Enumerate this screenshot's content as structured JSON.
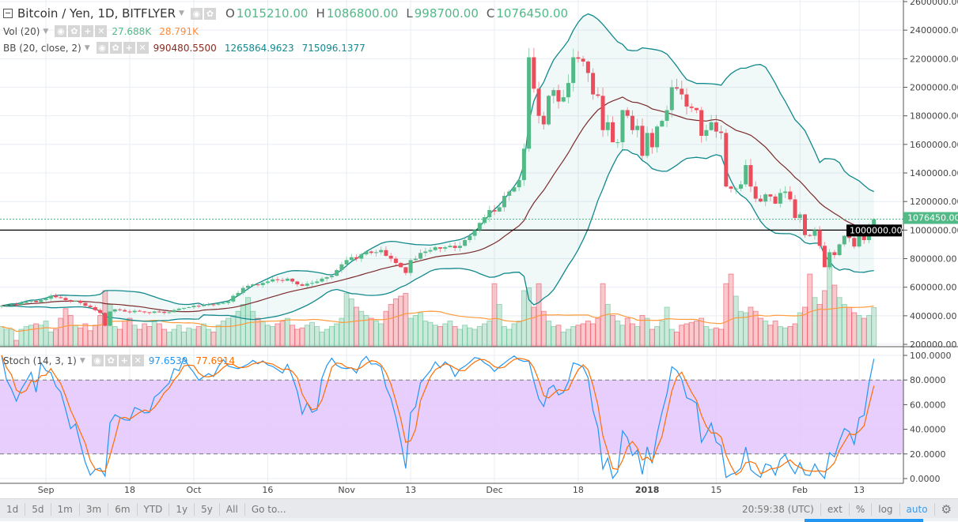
{
  "header": {
    "symbol_title": "Bitcoin / Yen, 1D, BITFLYER",
    "ohlc": {
      "o_label": "O",
      "o": "1015210.00",
      "h_label": "H",
      "h": "1086800.00",
      "l_label": "L",
      "l": "998700.00",
      "c_label": "C",
      "c": "1076450.00"
    }
  },
  "indicators": {
    "volume": {
      "label": "Vol (20)",
      "value": "27.688K",
      "ma": "28.791K"
    },
    "bb": {
      "label": "BB (20, close, 2)",
      "basis": "990480.5500",
      "upper": "1265864.9623",
      "lower": "715096.1377"
    },
    "stoch": {
      "label": "Stoch (14, 3, 1)",
      "k": "97.6539",
      "d": "77.6914"
    }
  },
  "price_axis": {
    "ticks": [
      "2600000.00",
      "2400000.00",
      "2200000.00",
      "2000000.00",
      "1800000.00",
      "1600000.00",
      "1400000.00",
      "1200000.00",
      "1000000.00",
      "800000.00",
      "600000.00",
      "400000.00",
      "200000.00"
    ],
    "last_price_label": "1076450.00",
    "horizontal_line_label": "1000000.00"
  },
  "stoch_axis": {
    "ticks": [
      "100.0000",
      "80.0000",
      "60.0000",
      "40.0000",
      "20.0000",
      "0.0000"
    ]
  },
  "time_axis": {
    "ticks": [
      "Sep",
      "18",
      "Oct",
      "16",
      "Nov",
      "13",
      "Dec",
      "18",
      "2018",
      "15",
      "Feb",
      "13"
    ]
  },
  "toolbar": {
    "ranges": [
      "1d",
      "5d",
      "1m",
      "3m",
      "6m",
      "YTD",
      "1y",
      "5y",
      "All",
      "Go to..."
    ],
    "clock": "20:59:38 (UTC)",
    "options": [
      "ext",
      "%",
      "log",
      "auto"
    ],
    "settings_icon": "gear-icon"
  },
  "colors": {
    "up": "#53b987",
    "down": "#eb4d5c",
    "bb_band": "#12898c",
    "bb_basis": "#7b2b2b",
    "vol_ma": "#ff9a3c",
    "stoch_k": "#2196f3",
    "stoch_d": "#ff6d00",
    "stoch_band": "#e3c6fb",
    "hline": "#000000",
    "last_price": "#53b987"
  },
  "chart_data": {
    "type": "candlestick",
    "price_range": [
      200000,
      2600000
    ],
    "horizontal_line": 1000000,
    "last": {
      "open": 1015210,
      "high": 1086800,
      "low": 998700,
      "close": 1076450
    },
    "closes_k": [
      470,
      475,
      480,
      478,
      490,
      500,
      505,
      495,
      510,
      520,
      540,
      530,
      525,
      510,
      500,
      505,
      490,
      470,
      460,
      440,
      420,
      330,
      430,
      445,
      440,
      430,
      425,
      435,
      430,
      425,
      420,
      430,
      428,
      420,
      425,
      440,
      450,
      455,
      460,
      470,
      468,
      475,
      480,
      478,
      485,
      490,
      500,
      540,
      560,
      595,
      610,
      620,
      615,
      630,
      640,
      655,
      650,
      645,
      660,
      640,
      620,
      610,
      625,
      630,
      640,
      660,
      670,
      680,
      720,
      760,
      790,
      810,
      800,
      830,
      850,
      840,
      845,
      860,
      820,
      800,
      770,
      740,
      700,
      790,
      800,
      840,
      850,
      860,
      880,
      870,
      880,
      890,
      875,
      890,
      930,
      960,
      1000,
      1050,
      1090,
      1140,
      1130,
      1160,
      1240,
      1270,
      1300,
      1350,
      1570,
      2210,
      1990,
      1800,
      1740,
      1940,
      1980,
      1900,
      1930,
      2030,
      2210,
      2200,
      2180,
      2100,
      1950,
      1940,
      1700,
      1755,
      1615,
      1615,
      1840,
      1800,
      1700,
      1730,
      1520,
      1680,
      1580,
      1725,
      1765,
      1840,
      2000,
      1990,
      1950,
      1865,
      1855,
      1840,
      1660,
      1700,
      1755,
      1690,
      1680,
      1305,
      1290,
      1290,
      1320,
      1455,
      1305,
      1220,
      1200,
      1250,
      1235,
      1185,
      1260,
      1270,
      1215,
      1085,
      1110,
      965,
      960,
      1000,
      890,
      740,
      845,
      825,
      900,
      960,
      945,
      885,
      980,
      930,
      1025,
      1076.45
    ],
    "volume_k": [
      14,
      12,
      12,
      4,
      12,
      14,
      15,
      16,
      15,
      18,
      10,
      12,
      20,
      27,
      22,
      15,
      13,
      16,
      11,
      15,
      22,
      40,
      30,
      14,
      12,
      18,
      20,
      15,
      12,
      16,
      14,
      18,
      16,
      12,
      10,
      12,
      15,
      10,
      13,
      12,
      14,
      16,
      12,
      10,
      15,
      18,
      20,
      22,
      25,
      30,
      35,
      25,
      20,
      18,
      15,
      14,
      16,
      18,
      20,
      15,
      12,
      13,
      15,
      17,
      14,
      10,
      12,
      14,
      16,
      20,
      38,
      34,
      28,
      25,
      22,
      20,
      18,
      16,
      25,
      30,
      34,
      36,
      38,
      20,
      22,
      24,
      18,
      17,
      15,
      14,
      16,
      18,
      14,
      12,
      15,
      13,
      12,
      14,
      16,
      18,
      45,
      30,
      14,
      12,
      16,
      18,
      40,
      42,
      28,
      45,
      25,
      18,
      14,
      15,
      10,
      12,
      14,
      15,
      16,
      18,
      16,
      20,
      45,
      30,
      22,
      18,
      15,
      20,
      16,
      14,
      22,
      20,
      12,
      14,
      18,
      28,
      12,
      10,
      15,
      16,
      17,
      18,
      20,
      14,
      12,
      13,
      12,
      45,
      52,
      36,
      25,
      24,
      28,
      25,
      20,
      18,
      15,
      18,
      14,
      13,
      14,
      16,
      24,
      28,
      52,
      35,
      30,
      40,
      58,
      44,
      35,
      30,
      28,
      24,
      22,
      20,
      22,
      27.688
    ],
    "bollinger": {
      "period": 20,
      "source": "close",
      "stddev": 2
    },
    "volume_ma_period": 20,
    "stochastic": {
      "k_length": 14,
      "k_smoothing": 3,
      "d_smoothing": 1,
      "bands": [
        20,
        80
      ],
      "range": [
        0,
        100
      ]
    }
  }
}
